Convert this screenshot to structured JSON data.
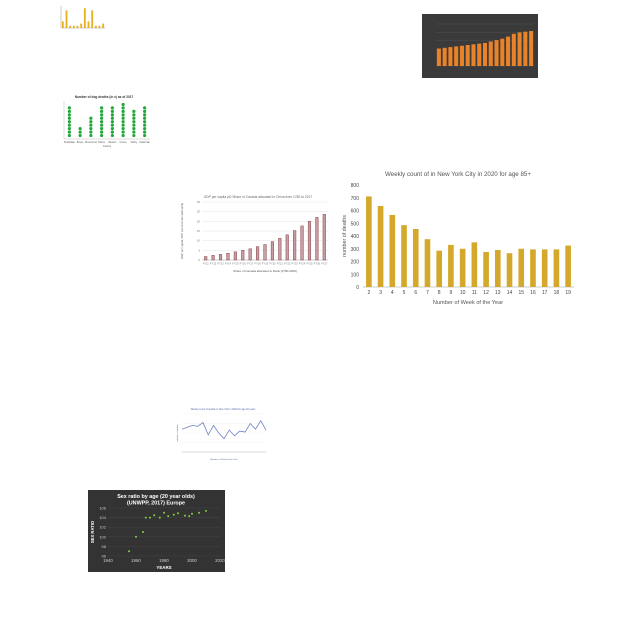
{
  "chart_data": [
    {
      "id": "tiny_bar",
      "type": "bar",
      "title": "",
      "color": "#e8b020",
      "categories": [
        "",
        "",
        "",
        "",
        "",
        "",
        "",
        "",
        "",
        "",
        "",
        ""
      ],
      "values": [
        3,
        8,
        1,
        1,
        1,
        2,
        9,
        3,
        8,
        1,
        1,
        2
      ],
      "ylim": [
        0,
        10
      ]
    },
    {
      "id": "orange_bar_dark",
      "type": "bar",
      "title": "",
      "xlabel": "",
      "color": "#e8832a",
      "background": "#3a3a3a",
      "categories": [
        "",
        "",
        "",
        "",
        "",
        "",
        "",
        "",
        "",
        "",
        "",
        "",
        "",
        "",
        "",
        "",
        ""
      ],
      "values": [
        50,
        52,
        54,
        56,
        58,
        60,
        62,
        64,
        66,
        70,
        74,
        78,
        84,
        92,
        96,
        98,
        100
      ],
      "ylim": [
        0,
        120
      ]
    },
    {
      "id": "green_dots",
      "type": "scatter",
      "title": "Number of dog deaths (in x) as of 2017",
      "xlabel": "County",
      "color": "#22a83a",
      "categories": [
        "Strathdale",
        "Boyce",
        "Drummond",
        "Holme",
        "Wexton",
        "Frome",
        "Ashby",
        "Kellerman"
      ],
      "values": [
        9,
        3,
        6,
        9,
        9,
        10,
        8,
        9
      ],
      "ylim": [
        0,
        11
      ]
    },
    {
      "id": "gdp_bar",
      "type": "bar",
      "title": "GDP per capita ρΩ Share of Canada allocated to China from 1780 to 2017",
      "xlabel": "Share of Canada allocated to Rank [1780-2006]",
      "ylabel": "GDP per capita, PPP (current international $)",
      "color": "#c4a0a4",
      "edge": "#8a4048",
      "categories": [
        "FY11",
        "FY12",
        "FY13",
        "FY14",
        "FY15",
        "FY16",
        "FY17",
        "FY18",
        "FY19",
        "FY20",
        "FY21",
        "FY22",
        "FY23",
        "FY24",
        "FY25",
        "FY26",
        "FY27"
      ],
      "values": [
        1.8,
        2.4,
        2.9,
        3.5,
        4.2,
        5.0,
        5.8,
        6.9,
        8.0,
        9.5,
        11.2,
        13.0,
        15.2,
        17.6,
        20.0,
        22.0,
        23.6
      ],
      "yticks": [
        "0",
        "5",
        "10",
        "15",
        "20",
        "25",
        "30"
      ],
      "ylim": [
        0,
        30
      ]
    },
    {
      "id": "weekly_deaths",
      "type": "bar",
      "title": "Weekly count of  in New York City in 2020 for age 85+",
      "xlabel": "Number of Week of the Year",
      "ylabel": "number of deaths",
      "color": "#d4a82a",
      "categories": [
        "2",
        "3",
        "4",
        "5",
        "6",
        "7",
        "8",
        "9",
        "10",
        "11",
        "12",
        "13",
        "14",
        "15",
        "16",
        "17",
        "18",
        "19"
      ],
      "values": [
        710,
        635,
        565,
        485,
        455,
        375,
        285,
        330,
        300,
        350,
        275,
        290,
        265,
        300,
        295,
        295,
        295,
        325
      ],
      "yticks": [
        "0",
        "100",
        "200",
        "300",
        "400",
        "500",
        "600",
        "700",
        "800"
      ],
      "ylim": [
        0,
        800
      ]
    },
    {
      "id": "blue_line",
      "type": "line",
      "title": "Weekly count of deaths in New York in 2020 for age 18 years",
      "xlabel": "Number of Week of the Year",
      "ylabel": "number of deaths",
      "color": "#7080c8",
      "x": [
        1,
        2,
        3,
        4,
        5,
        6,
        7,
        8,
        9,
        10,
        11,
        12,
        13,
        14,
        15,
        16,
        17
      ],
      "y": [
        24,
        26,
        28,
        27,
        31,
        18,
        28,
        20,
        14,
        23,
        17,
        22,
        21,
        30,
        24,
        33,
        23
      ],
      "ylim": [
        0,
        40
      ]
    },
    {
      "id": "sex_ratio",
      "type": "scatter",
      "title": "Sex ratio by age (20 year olds) (UNWPP, 2017) Europe",
      "xlabel": "YEARS",
      "ylabel": "SEX RATIO",
      "background": "#333333",
      "color": "#88d040",
      "x": [
        1955,
        1960,
        1965,
        1967,
        1970,
        1973,
        1977,
        1980,
        1983,
        1987,
        1990,
        1995,
        1998,
        2000,
        2005,
        2010
      ],
      "y": [
        97,
        100,
        101,
        104,
        104,
        104.5,
        104,
        105,
        104.3,
        104.6,
        104.9,
        104.4,
        104.3,
        104.8,
        105.0,
        105.4
      ],
      "xticks": [
        "1940",
        "1960",
        "1980",
        "2000",
        "2020"
      ],
      "yticks": [
        "96",
        "98",
        "100",
        "102",
        "104",
        "106"
      ],
      "xlim": [
        1940,
        2020
      ],
      "ylim": [
        96,
        106
      ]
    }
  ]
}
